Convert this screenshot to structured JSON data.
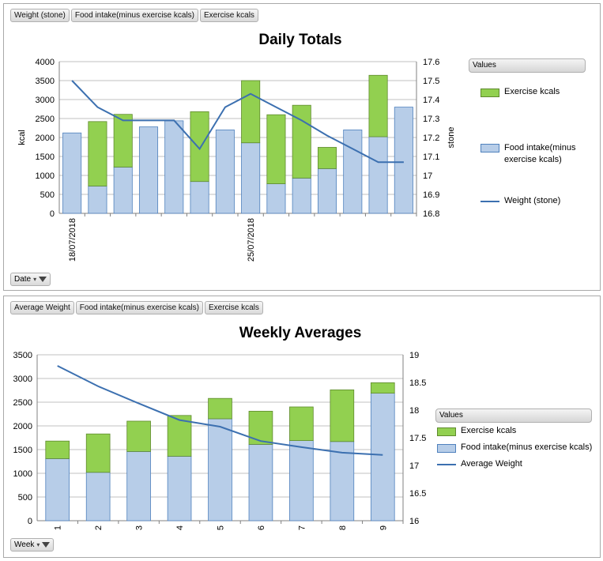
{
  "colors": {
    "exercise": "#92d050",
    "food": "#b7cde8",
    "weight": "#3c70b0",
    "grid": "#c0c0c0"
  },
  "daily": {
    "field_buttons": [
      "Weight (stone)",
      "Food intake(minus exercise kcals)",
      "Exercise kcals"
    ],
    "filter_label": "Date",
    "legend": {
      "header": "Values",
      "exercise": "Exercise kcals",
      "food": "Food intake(minus exercise kcals)",
      "weight": "Weight (stone)"
    }
  },
  "weekly": {
    "field_buttons": [
      "Average Weight",
      "Food intake(minus exercise kcals)",
      "Exercise kcals"
    ],
    "filter_label": "Week",
    "legend": {
      "header": "Values",
      "exercise": "Exercise kcals",
      "food": "Food intake(minus exercise kcals)",
      "weight": "Average Weight"
    }
  },
  "chart_data": [
    {
      "type": "bar",
      "stacked": true,
      "title": "Daily Totals",
      "ylabel": "kcal",
      "y2label": "stone",
      "ylim": [
        0,
        4000
      ],
      "yticks": [
        0,
        500,
        1000,
        1500,
        2000,
        2500,
        3000,
        3500,
        4000
      ],
      "y2lim": [
        16.8,
        17.6
      ],
      "y2ticks": [
        "16.8",
        "16.9",
        "17",
        "17.1",
        "17.2",
        "17.3",
        "17.4",
        "17.5",
        "17.6"
      ],
      "x_tick_labels": [
        {
          "index": 0,
          "label": "18/07/2018"
        },
        {
          "index": 7,
          "label": "25/07/2018"
        }
      ],
      "series": [
        {
          "name": "Food intake(minus exercise kcals)",
          "values": [
            2120,
            720,
            1220,
            2280,
            2440,
            840,
            2200,
            1860,
            780,
            930,
            1180,
            2200,
            2020,
            2800
          ]
        },
        {
          "name": "Exercise kcals",
          "values": [
            0,
            1700,
            1390,
            0,
            0,
            1840,
            0,
            1640,
            1820,
            1920,
            560,
            0,
            1620,
            0
          ]
        },
        {
          "name": "Weight (stone)",
          "axis": "secondary",
          "type": "line",
          "values": [
            17.5,
            17.36,
            17.29,
            17.29,
            17.29,
            17.14,
            17.36,
            17.43,
            17.36,
            17.29,
            17.21,
            17.14,
            17.07,
            17.07
          ]
        }
      ]
    },
    {
      "type": "bar",
      "stacked": true,
      "title": "Weekly Averages",
      "ylim": [
        0,
        3500
      ],
      "yticks": [
        0,
        500,
        1000,
        1500,
        2000,
        2500,
        3000,
        3500
      ],
      "y2lim": [
        16,
        19
      ],
      "y2ticks": [
        "16",
        "16.5",
        "17",
        "17.5",
        "18",
        "18.5",
        "19"
      ],
      "categories": [
        "1",
        "2",
        "3",
        "4",
        "5",
        "6",
        "7",
        "8",
        "9"
      ],
      "series": [
        {
          "name": "Food intake(minus exercise kcals)",
          "values": [
            1310,
            1020,
            1460,
            1360,
            2150,
            1610,
            1690,
            1670,
            2690
          ]
        },
        {
          "name": "Exercise kcals",
          "values": [
            370,
            810,
            640,
            860,
            430,
            700,
            710,
            1090,
            220
          ]
        },
        {
          "name": "Average Weight",
          "axis": "secondary",
          "type": "line",
          "values": [
            18.8,
            18.43,
            18.12,
            17.82,
            17.7,
            17.44,
            17.33,
            17.23,
            17.19
          ]
        }
      ]
    }
  ]
}
